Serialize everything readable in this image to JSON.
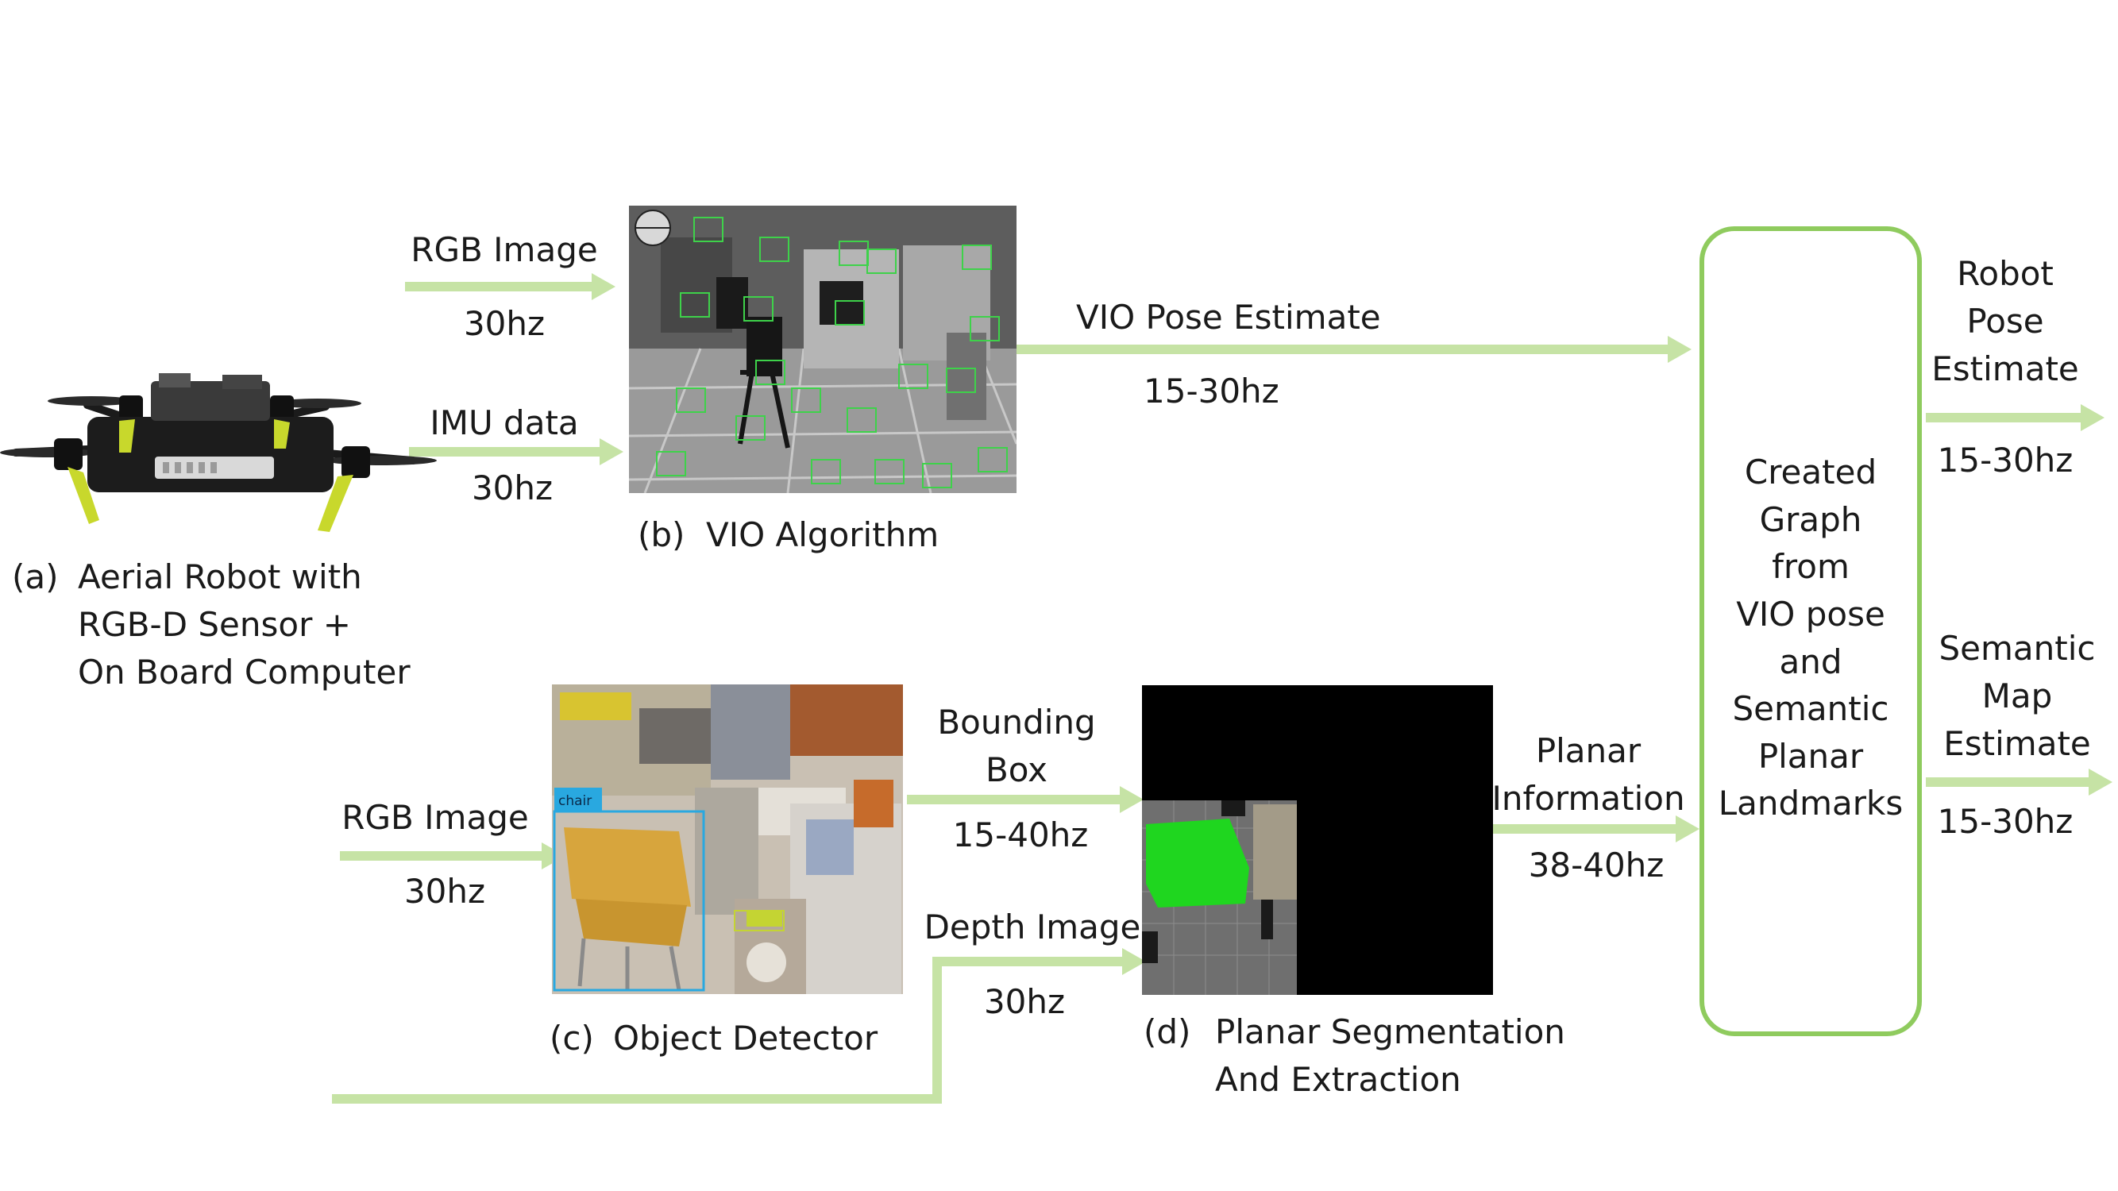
{
  "colors": {
    "arrow": "#c6e3a5",
    "graph_box_border": "#8fcb5e",
    "segmentation_green": "#1fd61f",
    "detector_box": "#29a8e0"
  },
  "robot": {
    "tag": "(a)",
    "caption": [
      "Aerial Robot with",
      "RGB-D Sensor +",
      "On Board Computer"
    ]
  },
  "vio": {
    "tag": "(b)",
    "caption": "VIO Algorithm",
    "input_rgb_label": "RGB Image",
    "input_rgb_rate": "30hz",
    "input_imu_label": "IMU data",
    "input_imu_rate": "30hz",
    "output_label": "VIO Pose Estimate",
    "output_rate": "15-30hz"
  },
  "detector": {
    "tag": "(c)",
    "caption": "Object Detector",
    "input_label": "RGB Image",
    "input_rate": "30hz",
    "box_class": "chair",
    "output_label": [
      "Bounding",
      "Box"
    ],
    "output_rate": "15-40hz"
  },
  "segmentation": {
    "tag": "(d)",
    "caption": [
      "Planar Segmentation",
      "And Extraction"
    ],
    "depth_label": "Depth Image",
    "depth_rate": "30hz",
    "output_label": [
      "Planar",
      "Information"
    ],
    "output_rate": "38-40hz"
  },
  "graph": {
    "text": [
      "Created",
      "Graph",
      "from",
      "VIO pose",
      "and",
      "Semantic",
      "Planar",
      "Landmarks"
    ]
  },
  "outputs": {
    "pose_label": [
      "Robot",
      "Pose",
      "Estimate"
    ],
    "pose_rate": "15-30hz",
    "map_label": [
      "Semantic",
      "Map",
      "Estimate"
    ],
    "map_rate": "15-30hz"
  }
}
